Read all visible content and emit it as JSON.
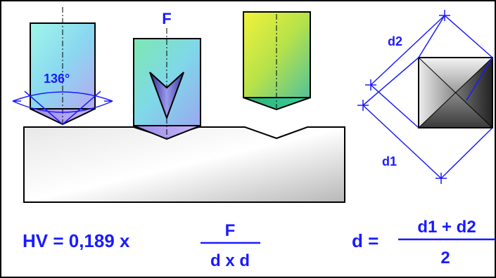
{
  "labels": {
    "angle": "136°",
    "force": "F",
    "diag2": "d2",
    "diag1": "d1"
  },
  "formula_hv": {
    "lhs": "HV = 0,189 x",
    "numerator": "F",
    "denominator": "d x d"
  },
  "formula_d": {
    "lhs": "d =",
    "numerator": "d1 + d2",
    "denominator": "2"
  },
  "colors": {
    "ink": "#1a1aff",
    "frame": "#000000"
  },
  "icons": [
    "vickers-indenter-icon",
    "square-indentation-icon"
  ]
}
